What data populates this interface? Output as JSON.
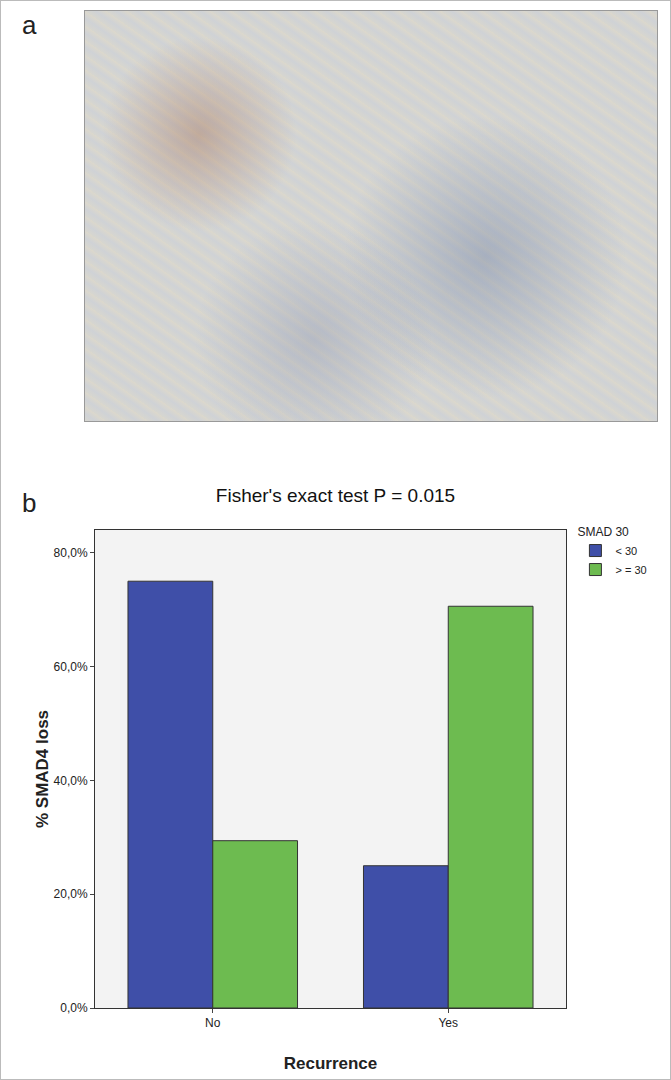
{
  "panel_labels": [
    "a",
    "b"
  ],
  "chart_data": {
    "type": "bar",
    "title": "Fisher's exact test P = 0.015",
    "x_label": "Recurrence",
    "y_label": "% SMAD4 loss",
    "categories": [
      "No",
      "Yes"
    ],
    "legend_title": "SMAD 30",
    "series": [
      {
        "name": "< 30",
        "color": "#3f4fa8",
        "values": [
          75,
          25
        ]
      },
      {
        "name": "> = 30",
        "color": "#6dbb50",
        "values": [
          29.4,
          70.6
        ]
      }
    ],
    "ylim": [
      0,
      84
    ],
    "yticks": [
      {
        "value": 0,
        "label": "0,0%"
      },
      {
        "value": 20,
        "label": "20,0%"
      },
      {
        "value": 40,
        "label": "40,0%"
      },
      {
        "value": 60,
        "label": "60,0%"
      },
      {
        "value": 80,
        "label": "80,0%"
      }
    ],
    "grid": false,
    "legend": "right"
  }
}
